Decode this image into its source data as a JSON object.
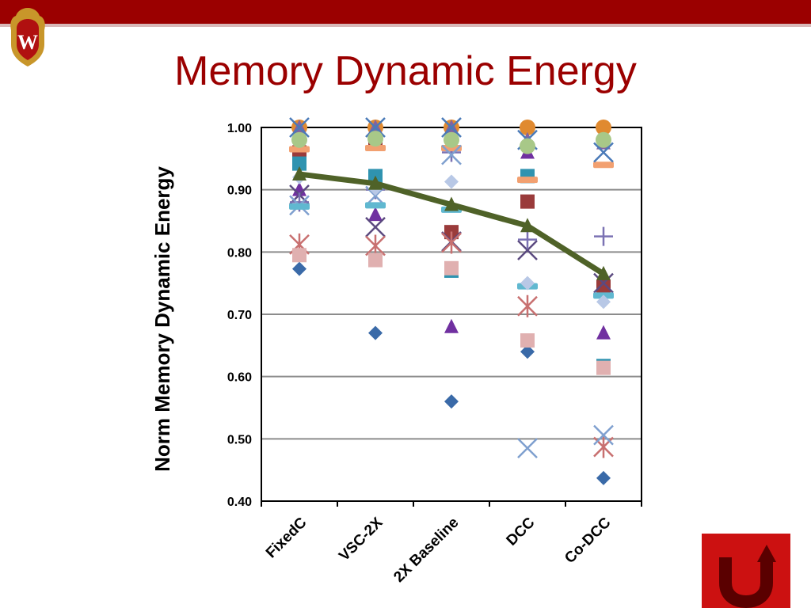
{
  "slide": {
    "title": "Memory Dynamic Energy",
    "accent_color": "#9b0000",
    "logo_icon": "uw-crest-icon",
    "nav_icon": "return-arrow-icon"
  },
  "chart_data": {
    "type": "scatter",
    "ylabel": "Norm Memory Dynamic Energy",
    "ylim": [
      0.4,
      1.0
    ],
    "yticks": [
      "1.00",
      "0.90",
      "0.80",
      "0.70",
      "0.60",
      "0.50",
      "0.40"
    ],
    "categories": [
      "FixedC",
      "VSC-2X",
      "2X Baseline",
      "DCC",
      "Co-DCC"
    ],
    "grid": true,
    "legend": "none",
    "series": [
      {
        "marker": "diamond",
        "color": "#3a6aa8",
        "values": [
          0.773,
          0.67,
          0.56,
          0.64,
          0.437
        ]
      },
      {
        "marker": "square",
        "color": "#9a3b3b",
        "values": [
          0.96,
          0.98,
          0.832,
          0.881,
          0.744
        ]
      },
      {
        "marker": "triangle",
        "color": "#7030a0",
        "values": [
          0.9,
          0.86,
          0.68,
          0.96,
          0.67
        ]
      },
      {
        "marker": "x",
        "color": "#5b4a80",
        "values": [
          0.892,
          0.84,
          0.817,
          0.803,
          0.75
        ]
      },
      {
        "marker": "star",
        "color": "#c87070",
        "values": [
          0.812,
          0.81,
          0.815,
          0.713,
          0.487
        ]
      },
      {
        "marker": "circle",
        "color": "#e08a30",
        "values": [
          1.0,
          1.0,
          1.0,
          1.0,
          1.0
        ]
      },
      {
        "marker": "plus",
        "color": "#7b72b3",
        "values": [
          0.88,
          0.9,
          0.96,
          0.82,
          0.825
        ]
      },
      {
        "marker": "square",
        "color": "#2f93b0",
        "values": [
          0.942,
          0.922,
          0.77,
          0.922,
          0.617
        ]
      },
      {
        "marker": "dash",
        "color": "#f2a070",
        "values": [
          0.965,
          0.967,
          0.967,
          0.916,
          0.94
        ]
      },
      {
        "marker": "x",
        "color": "#7fa0cf",
        "values": [
          0.875,
          0.89,
          0.956,
          0.485,
          0.506
        ]
      },
      {
        "marker": "square",
        "color": "#e0b0b0",
        "values": [
          0.795,
          0.787,
          0.774,
          0.658,
          0.614
        ]
      },
      {
        "marker": "dash",
        "color": "#60b8d0",
        "values": [
          0.873,
          0.875,
          0.868,
          0.745,
          0.73
        ]
      },
      {
        "marker": "diamond",
        "color": "#b8c8e6",
        "values": [
          0.92,
          0.902,
          0.913,
          0.75,
          0.72
        ]
      },
      {
        "marker": "triangle",
        "color": "#8064a2",
        "values": [
          1.0,
          1.0,
          1.0,
          0.98,
          0.975
        ]
      },
      {
        "marker": "x",
        "color": "#4a7ab8",
        "values": [
          1.0,
          1.0,
          1.0,
          0.98,
          0.96
        ]
      },
      {
        "marker": "circle",
        "color": "#a8c888",
        "values": [
          0.98,
          0.982,
          0.98,
          0.97,
          0.98
        ]
      },
      {
        "marker": "triangle",
        "color": "#4f6228",
        "line": true,
        "values": [
          0.925,
          0.91,
          0.876,
          0.842,
          0.765
        ]
      }
    ]
  }
}
